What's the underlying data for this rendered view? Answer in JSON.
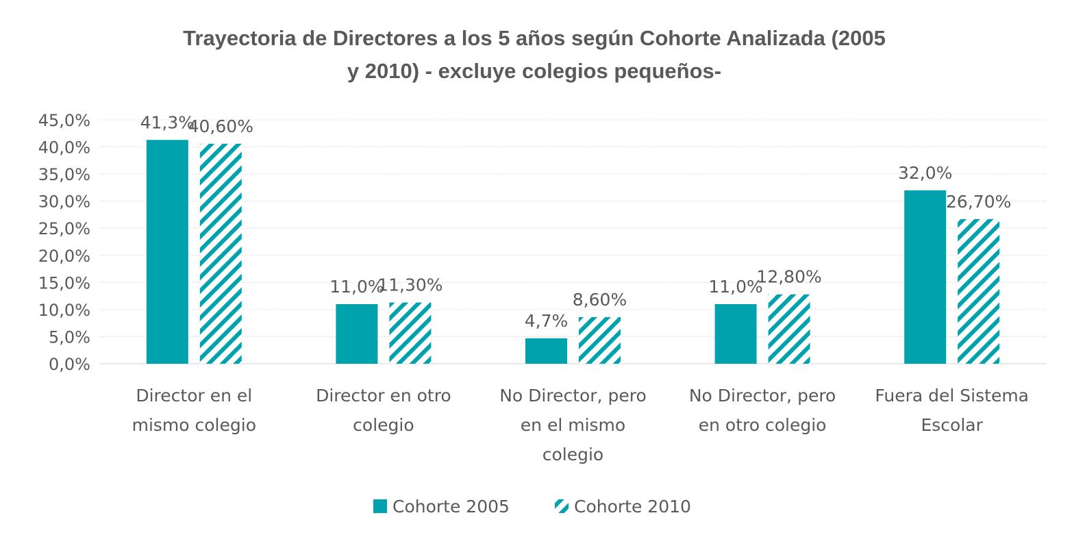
{
  "chart_data": {
    "type": "bar",
    "title_lines": [
      "Trayectoria de Directores a los 5 años según Cohorte Analizada (2005",
      "y 2010) - excluye colegios pequeños-"
    ],
    "categories": [
      [
        "Director en el",
        "mismo colegio"
      ],
      [
        "Director en otro",
        "colegio"
      ],
      [
        "No Director, pero",
        "en el mismo",
        "colegio"
      ],
      [
        "No Director, pero",
        "en otro colegio"
      ],
      [
        "Fuera del Sistema",
        "Escolar"
      ]
    ],
    "series": [
      {
        "name": "Cohorte 2005",
        "values": [
          41.3,
          11.0,
          4.7,
          11.0,
          32.0
        ],
        "labels": [
          "41,3%",
          "11,0%",
          "4,7%",
          "11,0%",
          "32,0%"
        ],
        "color": "#00A2AE",
        "pattern": "solid"
      },
      {
        "name": "Cohorte 2010",
        "values": [
          40.6,
          11.3,
          8.6,
          12.8,
          26.7
        ],
        "labels": [
          "40,60%",
          "11,30%",
          "8,60%",
          "12,80%",
          "26,70%"
        ],
        "color": "#00A2AE",
        "pattern": "diagonal-hatch"
      }
    ],
    "ylim": [
      0,
      45
    ],
    "yticks": [
      "0,0%",
      "5,0%",
      "10,0%",
      "15,0%",
      "20,0%",
      "25,0%",
      "30,0%",
      "35,0%",
      "40,0%",
      "45,0%"
    ],
    "grid": true,
    "legend": "bottom"
  }
}
